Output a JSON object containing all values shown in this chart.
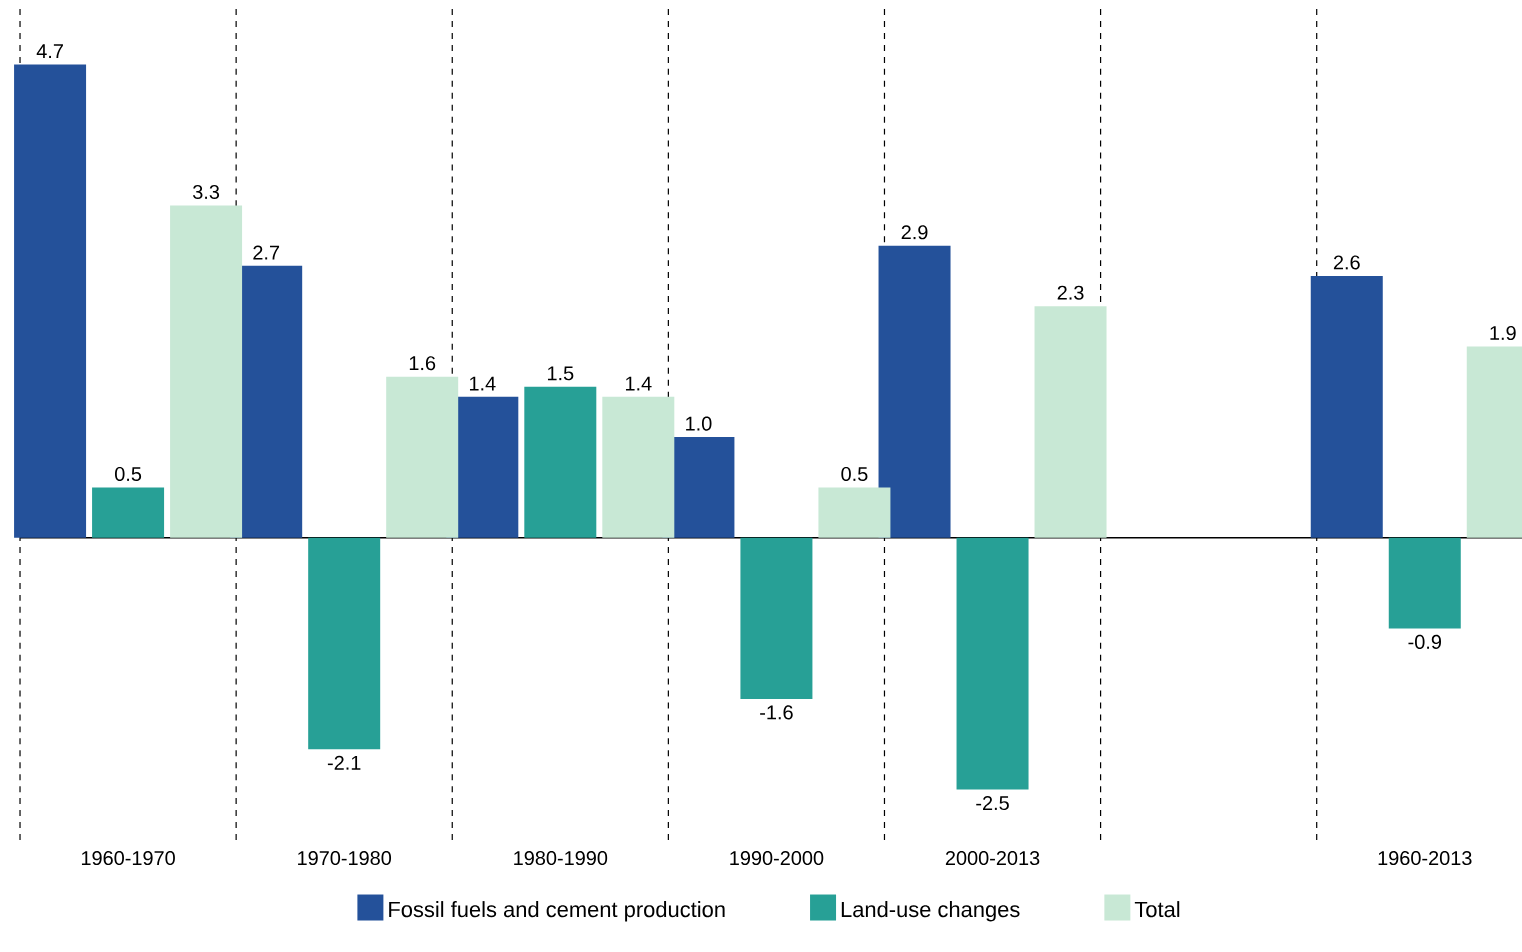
{
  "chart_data": {
    "type": "bar",
    "categories": [
      "1960-1970",
      "1970-1980",
      "1980-1990",
      "1990-2000",
      "2000-2013",
      null,
      "1960-2013"
    ],
    "series": [
      {
        "name": "Fossil fuels and cement production",
        "color": "#24519a",
        "values": [
          4.7,
          2.7,
          1.4,
          1.0,
          2.9,
          null,
          2.6
        ],
        "value_labels": [
          "4.7",
          "2.7",
          "1.4",
          "1.0",
          "2.9",
          null,
          "2.6"
        ]
      },
      {
        "name": "Land-use changes",
        "color": "#27a096",
        "values": [
          0.5,
          -2.1,
          1.5,
          -1.6,
          -2.5,
          null,
          -0.9
        ],
        "value_labels": [
          "0.5",
          "-2.1",
          "1.5",
          "-1.6",
          "-2.5",
          null,
          "-0.9"
        ]
      },
      {
        "name": "Total",
        "color": "#c8e8d5",
        "values": [
          3.3,
          1.6,
          1.4,
          0.5,
          2.3,
          null,
          1.9
        ],
        "value_labels": [
          "3.3",
          "1.6",
          "1.4",
          "0.5",
          "2.3",
          null,
          "1.9"
        ]
      }
    ],
    "ylim": [
      -3.0,
      5.3
    ],
    "grid": "x",
    "legend": "bottom"
  }
}
